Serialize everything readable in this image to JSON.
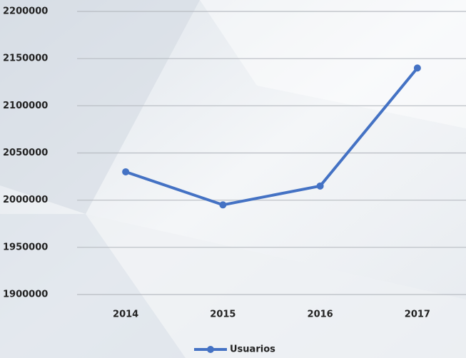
{
  "chart_data": {
    "type": "line",
    "categories": [
      "2014",
      "2015",
      "2016",
      "2017"
    ],
    "series": [
      {
        "name": "Usuarios",
        "color": "#4472c4",
        "values": [
          2030000,
          1995000,
          2015000,
          2140000
        ]
      }
    ],
    "ylim": [
      1900000,
      2200000
    ],
    "yticks": [
      1900000,
      1950000,
      2000000,
      2050000,
      2100000,
      2150000,
      2200000
    ],
    "grid": true,
    "legend": "bottom"
  }
}
